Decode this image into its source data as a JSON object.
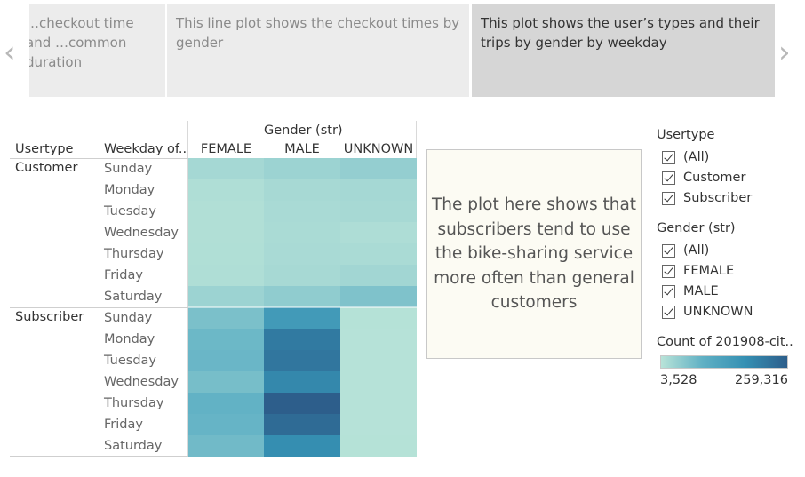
{
  "story": {
    "prev_icon": "chevron-left-icon",
    "next_icon": "chevron-right-icon",
    "points": [
      {
        "text": "…checkout time and …common duration"
      },
      {
        "text": "This line plot shows the checkout times by gender"
      },
      {
        "text": "This plot shows the user’s types and their trips by gender by weekday"
      }
    ]
  },
  "table": {
    "col_group_header": "Gender (str)",
    "row_header_usertype": "Usertype",
    "row_header_weekday": "Weekday of..",
    "usertypes": [
      "Customer",
      "Subscriber"
    ],
    "weekdays": [
      "Sunday",
      "Monday",
      "Tuesday",
      "Wednesday",
      "Thursday",
      "Friday",
      "Saturday"
    ]
  },
  "annotation": {
    "text": "The plot here shows that subscribers tend to use the bike-sharing service more often than general customers"
  },
  "filters": {
    "usertype": {
      "title": "Usertype",
      "items": [
        "(All)",
        "Customer",
        "Subscriber"
      ]
    },
    "gender": {
      "title": "Gender (str)",
      "items": [
        "(All)",
        "FEMALE",
        "MALE",
        "UNKNOWN"
      ]
    }
  },
  "color_legend": {
    "title": "Count of 201908-cit..",
    "min_label": "3,528",
    "max_label": "259,316",
    "colors": [
      "#b8e3d8",
      "#5fb0c4",
      "#3590b3",
      "#2d5e8b"
    ]
  },
  "chart_data": {
    "type": "heatmap",
    "measure": "Count of 201908-cit..",
    "color_range": [
      3528,
      259316
    ],
    "columns": [
      "FEMALE",
      "MALE",
      "UNKNOWN"
    ],
    "rows": [
      {
        "usertype": "Customer",
        "weekday": "Sunday",
        "values": [
          22000,
          30000,
          38000
        ]
      },
      {
        "usertype": "Customer",
        "weekday": "Monday",
        "values": [
          12000,
          20000,
          22000
        ]
      },
      {
        "usertype": "Customer",
        "weekday": "Tuesday",
        "values": [
          10000,
          18000,
          20000
        ]
      },
      {
        "usertype": "Customer",
        "weekday": "Wednesday",
        "values": [
          10000,
          17000,
          13000
        ]
      },
      {
        "usertype": "Customer",
        "weekday": "Thursday",
        "values": [
          11000,
          18000,
          17000
        ]
      },
      {
        "usertype": "Customer",
        "weekday": "Friday",
        "values": [
          12000,
          20000,
          25000
        ]
      },
      {
        "usertype": "Customer",
        "weekday": "Saturday",
        "values": [
          30000,
          42000,
          58000
        ]
      },
      {
        "usertype": "Subscriber",
        "weekday": "Sunday",
        "values": [
          62000,
          148000,
          6000
        ]
      },
      {
        "usertype": "Subscriber",
        "weekday": "Monday",
        "values": [
          76000,
          212000,
          5500
        ]
      },
      {
        "usertype": "Subscriber",
        "weekday": "Tuesday",
        "values": [
          78000,
          218000,
          5500
        ]
      },
      {
        "usertype": "Subscriber",
        "weekday": "Wednesday",
        "values": [
          66000,
          188000,
          5000
        ]
      },
      {
        "usertype": "Subscriber",
        "weekday": "Thursday",
        "values": [
          86000,
          259316,
          5500
        ]
      },
      {
        "usertype": "Subscriber",
        "weekday": "Friday",
        "values": [
          82000,
          238000,
          5500
        ]
      },
      {
        "usertype": "Subscriber",
        "weekday": "Saturday",
        "values": [
          72000,
          178000,
          6000
        ]
      }
    ]
  }
}
